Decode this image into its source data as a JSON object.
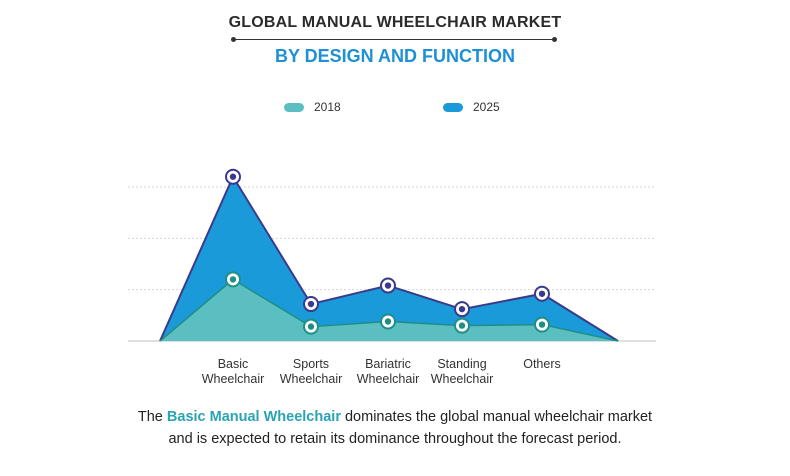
{
  "title": "GLOBAL MANUAL WHEELCHAIR MARKET",
  "subtitle": "BY DESIGN AND FUNCTION",
  "caption": {
    "prefix": "The ",
    "highlight": "Basic Manual Wheelchair",
    "suffix": " dominates the global manual wheelchair market",
    "line2": "and is expected to retain its dominance throughout the forecast period."
  },
  "colors": {
    "series_2018_fill": "#5bbfc2",
    "series_2018_line": "#1f8e86",
    "series_2025_fill": "#1a9ad9",
    "series_2025_line": "#3a3a8c",
    "title": "#2b2b2b",
    "subtitle": "#1e90d6",
    "highlight": "#2aa3b5"
  },
  "chart_data": {
    "type": "area",
    "categories": [
      "Basic Wheelchair",
      "Sports Wheelchair",
      "Bariatric Wheelchair",
      "Standing Wheelchair",
      "Others"
    ],
    "series": [
      {
        "name": "2018",
        "values": [
          1.2,
          0.28,
          0.38,
          0.3,
          0.32
        ]
      },
      {
        "name": "2025",
        "values": [
          3.2,
          0.72,
          1.08,
          0.62,
          0.92
        ]
      }
    ],
    "ylim": [
      0,
      3.0
    ],
    "grid": true,
    "legend_position": "top-center",
    "xlabel": "",
    "ylabel": ""
  }
}
